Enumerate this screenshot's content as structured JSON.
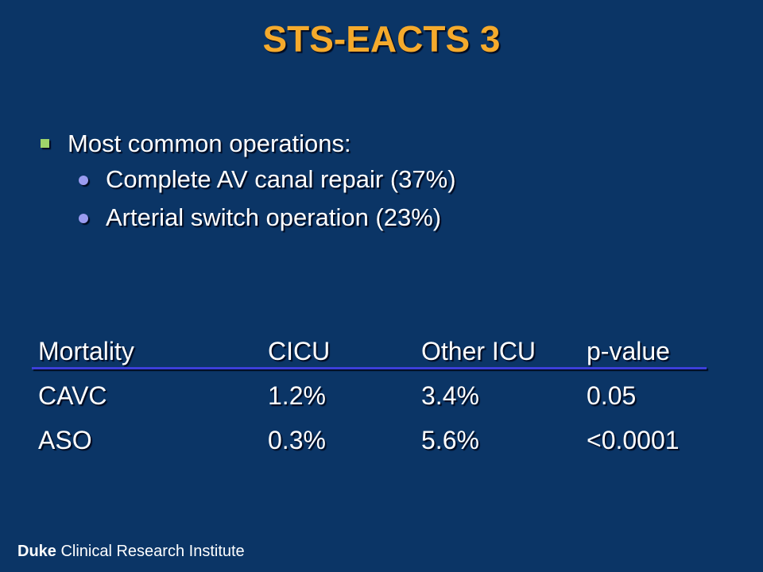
{
  "title": "STS-EACTS 3",
  "bullets": [
    {
      "text": "Most common operations:",
      "children": [
        "Complete AV canal repair (37%)",
        "Arterial switch operation (23%)"
      ]
    }
  ],
  "table": {
    "header": [
      "Mortality",
      "CICU",
      "Other ICU",
      "p-value"
    ],
    "rows": [
      [
        "CAVC",
        "1.2%",
        "3.4%",
        "0.05"
      ],
      [
        "ASO",
        "0.3%",
        "5.6%",
        "<0.0001"
      ]
    ]
  },
  "footer": {
    "brand": "Duke",
    "text": "Clinical Research Institute"
  }
}
